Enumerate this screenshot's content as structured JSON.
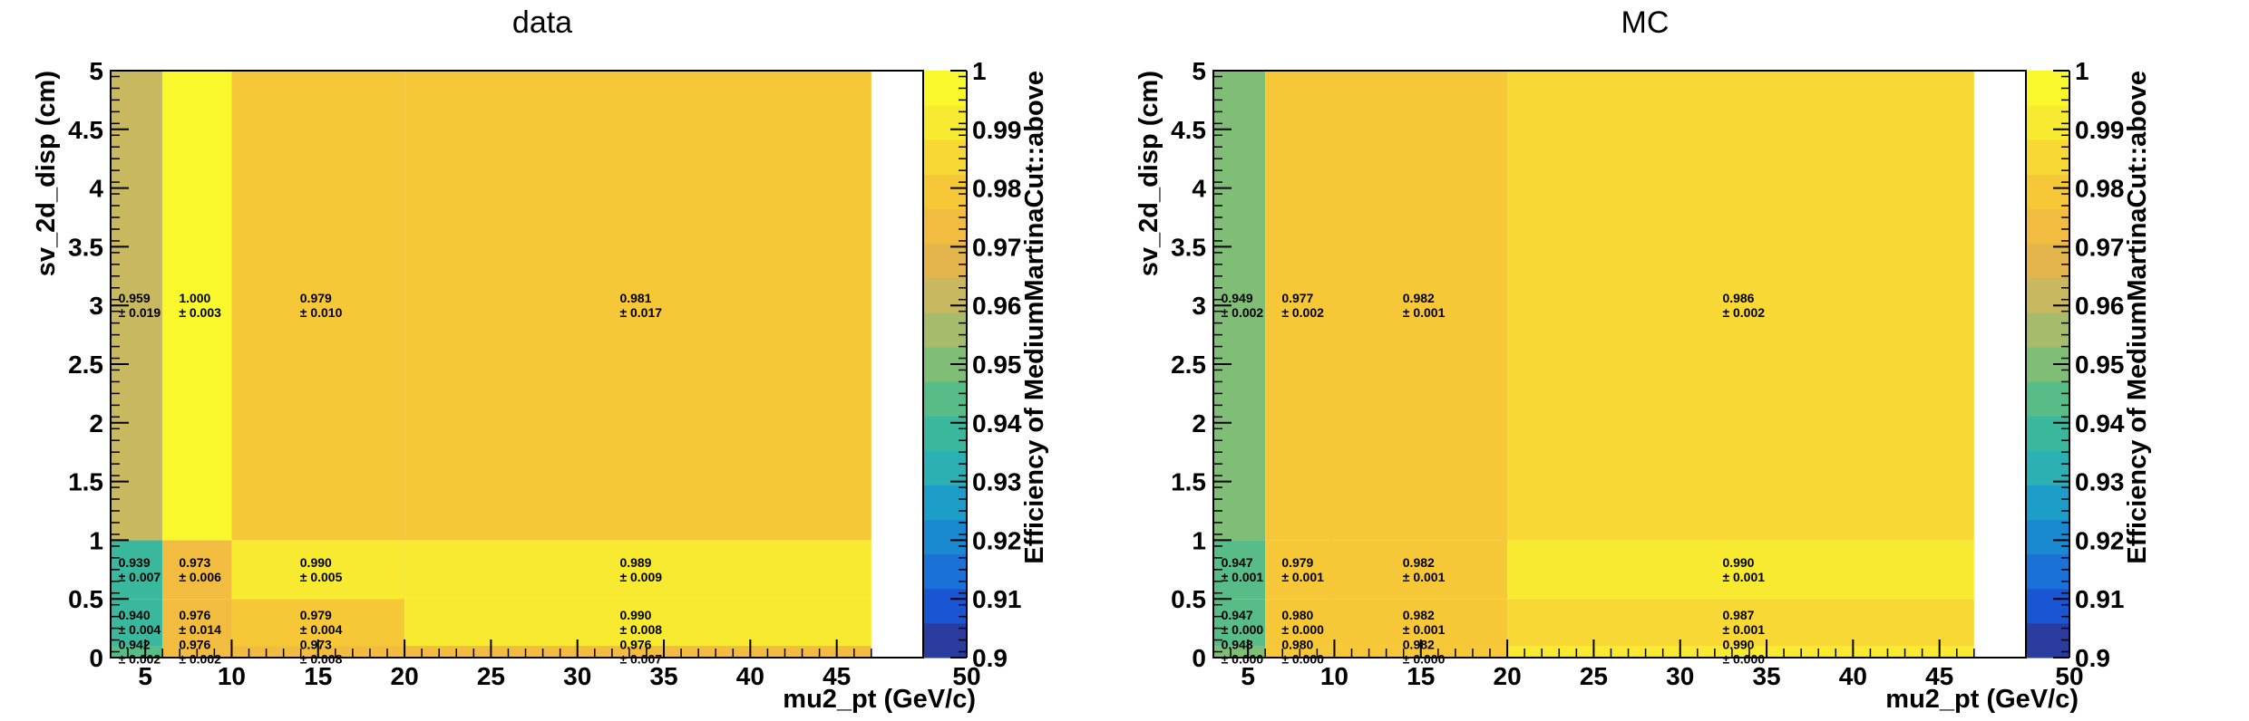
{
  "chart_data": [
    {
      "type": "heatmap",
      "title": "data",
      "xlabel": "mu2_pt (GeV/c)",
      "ylabel": "sv_2d_disp (cm)",
      "zlabel": "Efficiency of MediumMartinaCut::above",
      "xlim": [
        3,
        50
      ],
      "ylim": [
        0,
        5
      ],
      "zlim": [
        0.9,
        1
      ],
      "x_edges": [
        3,
        6,
        10,
        20,
        47
      ],
      "y_edges": [
        0,
        0.1,
        0.5,
        1,
        5
      ],
      "x_ticks": [
        5,
        10,
        15,
        20,
        25,
        30,
        35,
        40,
        45,
        50
      ],
      "y_ticks": [
        0,
        0.5,
        1,
        1.5,
        2,
        2.5,
        3,
        3.5,
        4,
        4.5,
        5
      ],
      "z_ticks": [
        0.9,
        0.91,
        0.92,
        0.93,
        0.94,
        0.95,
        0.96,
        0.97,
        0.98,
        0.99,
        1
      ],
      "x_tick_labels": [
        "5",
        "10",
        "15",
        "20",
        "25",
        "30",
        "35",
        "40",
        "45",
        "50"
      ],
      "y_tick_labels": [
        "0",
        "0.5",
        "1",
        "1.5",
        "2",
        "2.5",
        "3",
        "3.5",
        "4",
        "4.5",
        "5"
      ],
      "z_tick_labels": [
        "0.9",
        "0.91",
        "0.92",
        "0.93",
        "0.94",
        "0.95",
        "0.96",
        "0.97",
        "0.98",
        "0.99",
        "1"
      ],
      "values": [
        [
          0.942,
          0.976,
          0.973,
          0.976
        ],
        [
          0.94,
          0.976,
          0.979,
          0.99
        ],
        [
          0.939,
          0.973,
          0.99,
          0.989
        ],
        [
          0.959,
          1.0,
          0.979,
          0.981
        ]
      ],
      "value_labels": [
        [
          "0.942",
          "0.976",
          "0.973",
          "0.976"
        ],
        [
          "0.940",
          "0.976",
          "0.979",
          "0.990"
        ],
        [
          "0.939",
          "0.973",
          "0.990",
          "0.989"
        ],
        [
          "0.959",
          "1.000",
          "0.979",
          "0.981"
        ]
      ],
      "error_labels": [
        [
          "± 0.002",
          "± 0.002",
          "± 0.008",
          "± 0.007"
        ],
        [
          "± 0.004",
          "± 0.014",
          "± 0.004",
          "± 0.008"
        ],
        [
          "± 0.007",
          "± 0.006",
          "± 0.005",
          "± 0.009"
        ],
        [
          "± 0.019",
          "± 0.003",
          "± 0.010",
          "± 0.017"
        ]
      ],
      "grid": false,
      "palette_position": "right"
    },
    {
      "type": "heatmap",
      "title": "MC",
      "xlabel": "mu2_pt (GeV/c)",
      "ylabel": "sv_2d_disp (cm)",
      "zlabel": "Efficiency of MediumMartinaCut::above",
      "xlim": [
        3,
        50
      ],
      "ylim": [
        0,
        5
      ],
      "zlim": [
        0.9,
        1
      ],
      "x_edges": [
        3,
        6,
        10,
        20,
        47
      ],
      "y_edges": [
        0,
        0.1,
        0.5,
        1,
        5
      ],
      "x_ticks": [
        5,
        10,
        15,
        20,
        25,
        30,
        35,
        40,
        45,
        50
      ],
      "y_ticks": [
        0,
        0.5,
        1,
        1.5,
        2,
        2.5,
        3,
        3.5,
        4,
        4.5,
        5
      ],
      "z_ticks": [
        0.9,
        0.91,
        0.92,
        0.93,
        0.94,
        0.95,
        0.96,
        0.97,
        0.98,
        0.99,
        1
      ],
      "x_tick_labels": [
        "5",
        "10",
        "15",
        "20",
        "25",
        "30",
        "35",
        "40",
        "45",
        "50"
      ],
      "y_tick_labels": [
        "0",
        "0.5",
        "1",
        "1.5",
        "2",
        "2.5",
        "3",
        "3.5",
        "4",
        "4.5",
        "5"
      ],
      "z_tick_labels": [
        "0.9",
        "0.91",
        "0.92",
        "0.93",
        "0.94",
        "0.95",
        "0.96",
        "0.97",
        "0.98",
        "0.99",
        "1"
      ],
      "values": [
        [
          0.948,
          0.98,
          0.982,
          0.99
        ],
        [
          0.947,
          0.98,
          0.982,
          0.987
        ],
        [
          0.947,
          0.979,
          0.982,
          0.99
        ],
        [
          0.949,
          0.977,
          0.982,
          0.986
        ]
      ],
      "value_labels": [
        [
          "0.948",
          "0.980",
          "0.982",
          "0.990"
        ],
        [
          "0.947",
          "0.980",
          "0.982",
          "0.987"
        ],
        [
          "0.947",
          "0.979",
          "0.982",
          "0.990"
        ],
        [
          "0.949",
          "0.977",
          "0.982",
          "0.986"
        ]
      ],
      "error_labels": [
        [
          "± 0.000",
          "± 0.000",
          "± 0.000",
          "± 0.000"
        ],
        [
          "± 0.000",
          "± 0.000",
          "± 0.001",
          "± 0.001"
        ],
        [
          "± 0.001",
          "± 0.001",
          "± 0.001",
          "± 0.001"
        ],
        [
          "± 0.002",
          "± 0.002",
          "± 0.001",
          "± 0.002"
        ]
      ],
      "grid": false,
      "palette_position": "right"
    }
  ],
  "palette_colors": [
    "#2a3d9e",
    "#1a56d4",
    "#1a72d8",
    "#1a8ad0",
    "#1c9ec8",
    "#2cb0b4",
    "#3ab89e",
    "#58bc88",
    "#80be78",
    "#a6bc6c",
    "#c8b860",
    "#e2b64c",
    "#f2bc40",
    "#f6c838",
    "#f8d834",
    "#f8ea30",
    "#f8f82c"
  ]
}
